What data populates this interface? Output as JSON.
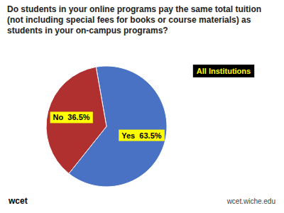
{
  "chart_data": {
    "type": "pie",
    "title": "Do students in your online programs pay the same total tuition (not including special fees for books or course materials) as students in your on-campus programs?",
    "subtitle": "All Institutions",
    "values": [
      63.5,
      36.5
    ],
    "value_labels": [
      "Yes  63.5%",
      "No  36.5%"
    ],
    "colors": [
      "#4a72c4",
      "#b03030"
    ],
    "data_labels": true,
    "annotations": [
      "wcet",
      "wcet.wiche.edu"
    ]
  }
}
